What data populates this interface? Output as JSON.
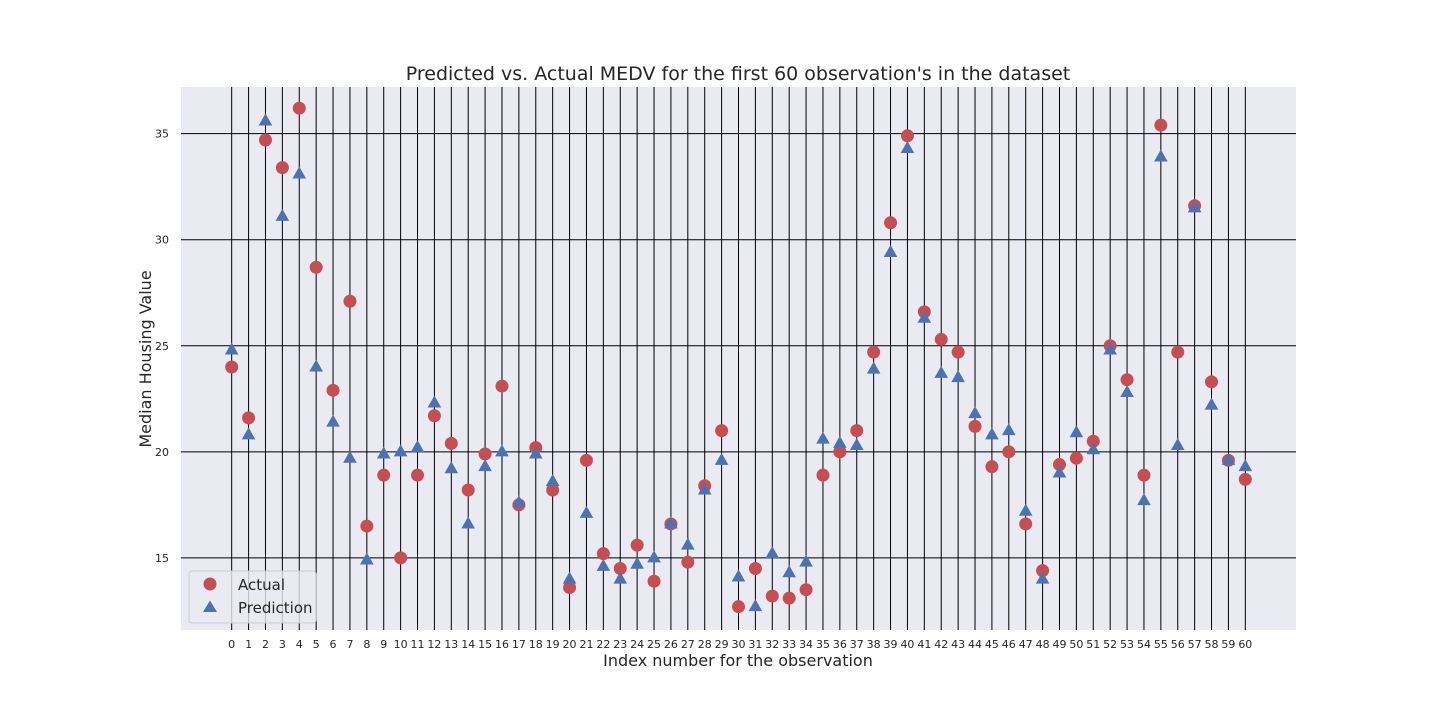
{
  "chart_data": {
    "type": "scatter",
    "title": "Predicted vs. Actual MEDV for the first 60 observation's in the dataset",
    "xlabel": "Index number for the observation",
    "ylabel": "Median Housing Value",
    "x": [
      0,
      1,
      2,
      3,
      4,
      5,
      6,
      7,
      8,
      9,
      10,
      11,
      12,
      13,
      14,
      15,
      16,
      17,
      18,
      19,
      20,
      21,
      22,
      23,
      24,
      25,
      26,
      27,
      28,
      29,
      30,
      31,
      32,
      33,
      34,
      35,
      36,
      37,
      38,
      39,
      40,
      41,
      42,
      43,
      44,
      45,
      46,
      47,
      48,
      49,
      50,
      51,
      52,
      53,
      54,
      55,
      56,
      57,
      58,
      59,
      60
    ],
    "xlim": [
      -3,
      63
    ],
    "ylim": [
      11.6,
      37.2
    ],
    "yticks": [
      15,
      20,
      25,
      30,
      35
    ],
    "grid": true,
    "legend_position": "bottom-left",
    "series": [
      {
        "name": "Actual",
        "marker": "circle",
        "color": "#c44e52",
        "values": [
          24.0,
          21.6,
          34.7,
          33.4,
          36.2,
          28.7,
          22.9,
          27.1,
          16.5,
          18.9,
          15.0,
          18.9,
          21.7,
          20.4,
          18.2,
          19.9,
          23.1,
          17.5,
          20.2,
          18.2,
          13.6,
          19.6,
          15.2,
          14.5,
          15.6,
          13.9,
          16.6,
          14.8,
          18.4,
          21.0,
          12.7,
          14.5,
          13.2,
          13.1,
          13.5,
          18.9,
          20.0,
          21.0,
          24.7,
          30.8,
          34.9,
          26.6,
          25.3,
          24.7,
          21.2,
          19.3,
          20.0,
          16.6,
          14.4,
          19.4,
          19.7,
          20.5,
          25.0,
          23.4,
          18.9,
          35.4,
          24.7,
          31.6,
          23.3,
          19.6,
          18.7
        ]
      },
      {
        "name": "Prediction",
        "marker": "triangle",
        "color": "#4c72b0",
        "values": [
          24.8,
          20.8,
          35.6,
          31.1,
          33.1,
          24.0,
          21.4,
          19.7,
          14.9,
          19.9,
          20.0,
          20.2,
          22.3,
          19.2,
          16.6,
          19.3,
          20.0,
          17.6,
          19.9,
          18.6,
          14.0,
          17.1,
          14.6,
          14.0,
          14.7,
          15.0,
          16.6,
          15.6,
          18.2,
          19.6,
          14.1,
          12.7,
          15.2,
          14.3,
          14.8,
          20.6,
          20.4,
          20.3,
          23.9,
          29.4,
          34.3,
          26.3,
          23.7,
          23.5,
          21.8,
          20.8,
          21.0,
          17.2,
          14.0,
          19.0,
          20.9,
          20.1,
          24.8,
          22.8,
          17.7,
          33.9,
          20.3,
          31.5,
          22.2,
          19.6,
          19.3
        ]
      }
    ]
  }
}
